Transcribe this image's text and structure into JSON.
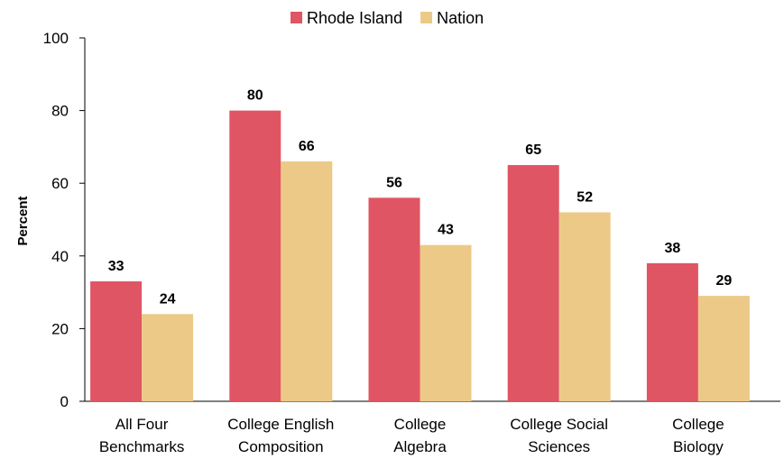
{
  "chart_data": {
    "type": "bar",
    "categories": [
      [
        "All Four",
        "Benchmarks"
      ],
      [
        "College English",
        "Composition"
      ],
      [
        "College",
        "Algebra"
      ],
      [
        "College Social",
        "Sciences"
      ],
      [
        "College",
        "Biology"
      ]
    ],
    "series": [
      {
        "name": "Rhode Island",
        "color": "#e05563",
        "values": [
          33,
          80,
          56,
          65,
          38
        ]
      },
      {
        "name": "Nation",
        "color": "#edc987",
        "values": [
          24,
          66,
          43,
          52,
          29
        ]
      }
    ],
    "ylabel": "Percent",
    "ylim": [
      0,
      100
    ],
    "yticks": [
      0,
      20,
      40,
      60,
      80,
      100
    ],
    "legend_position": "top-center",
    "grid": false
  }
}
